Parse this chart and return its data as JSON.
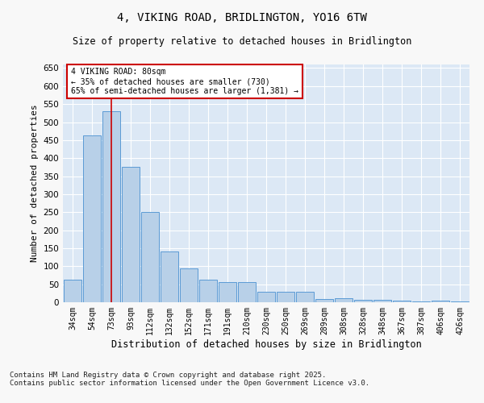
{
  "title1": "4, VIKING ROAD, BRIDLINGTON, YO16 6TW",
  "title2": "Size of property relative to detached houses in Bridlington",
  "xlabel": "Distribution of detached houses by size in Bridlington",
  "ylabel": "Number of detached properties",
  "categories": [
    "34sqm",
    "54sqm",
    "73sqm",
    "93sqm",
    "112sqm",
    "132sqm",
    "152sqm",
    "171sqm",
    "191sqm",
    "210sqm",
    "230sqm",
    "250sqm",
    "269sqm",
    "289sqm",
    "308sqm",
    "328sqm",
    "348sqm",
    "367sqm",
    "387sqm",
    "406sqm",
    "426sqm"
  ],
  "values": [
    62,
    463,
    530,
    375,
    250,
    142,
    95,
    62,
    55,
    55,
    28,
    28,
    28,
    10,
    12,
    7,
    7,
    4,
    3,
    5,
    3
  ],
  "bar_color": "#b8d0e8",
  "bar_edge_color": "#5b9bd5",
  "background_color": "#dce8f5",
  "grid_color": "#ffffff",
  "vline_x": 2,
  "annotation_text_line1": "4 VIKING ROAD: 80sqm",
  "annotation_text_line2": "← 35% of detached houses are smaller (730)",
  "annotation_text_line3": "65% of semi-detached houses are larger (1,381) →",
  "ylim": [
    0,
    660
  ],
  "yticks": [
    0,
    50,
    100,
    150,
    200,
    250,
    300,
    350,
    400,
    450,
    500,
    550,
    600,
    650
  ],
  "footer1": "Contains HM Land Registry data © Crown copyright and database right 2025.",
  "footer2": "Contains public sector information licensed under the Open Government Licence v3.0."
}
